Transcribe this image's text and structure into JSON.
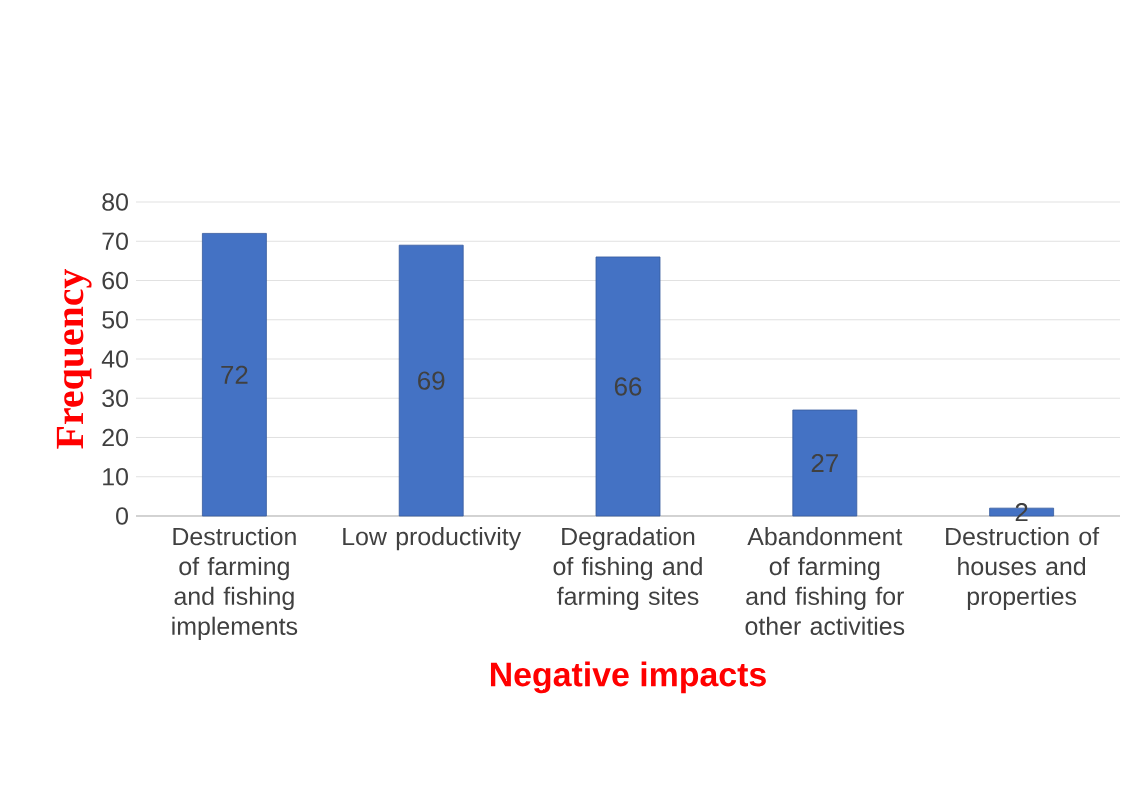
{
  "chart_data": {
    "type": "bar",
    "categories": [
      "Destruction of farming and fishing implements",
      "Low productivity",
      "Degradation of fishing and farming sites",
      "Abandonment of farming and fishing for other activities",
      "Destruction of houses and properties"
    ],
    "values": [
      72,
      69,
      66,
      27,
      2
    ],
    "color": "#4472c4",
    "ylim": [
      0,
      80
    ],
    "yticks": [
      0,
      10,
      20,
      30,
      40,
      50,
      60,
      70,
      80
    ],
    "grid": "y",
    "data_labels": true,
    "xlabel": "Negative impacts",
    "ylabel": "Frequency"
  }
}
